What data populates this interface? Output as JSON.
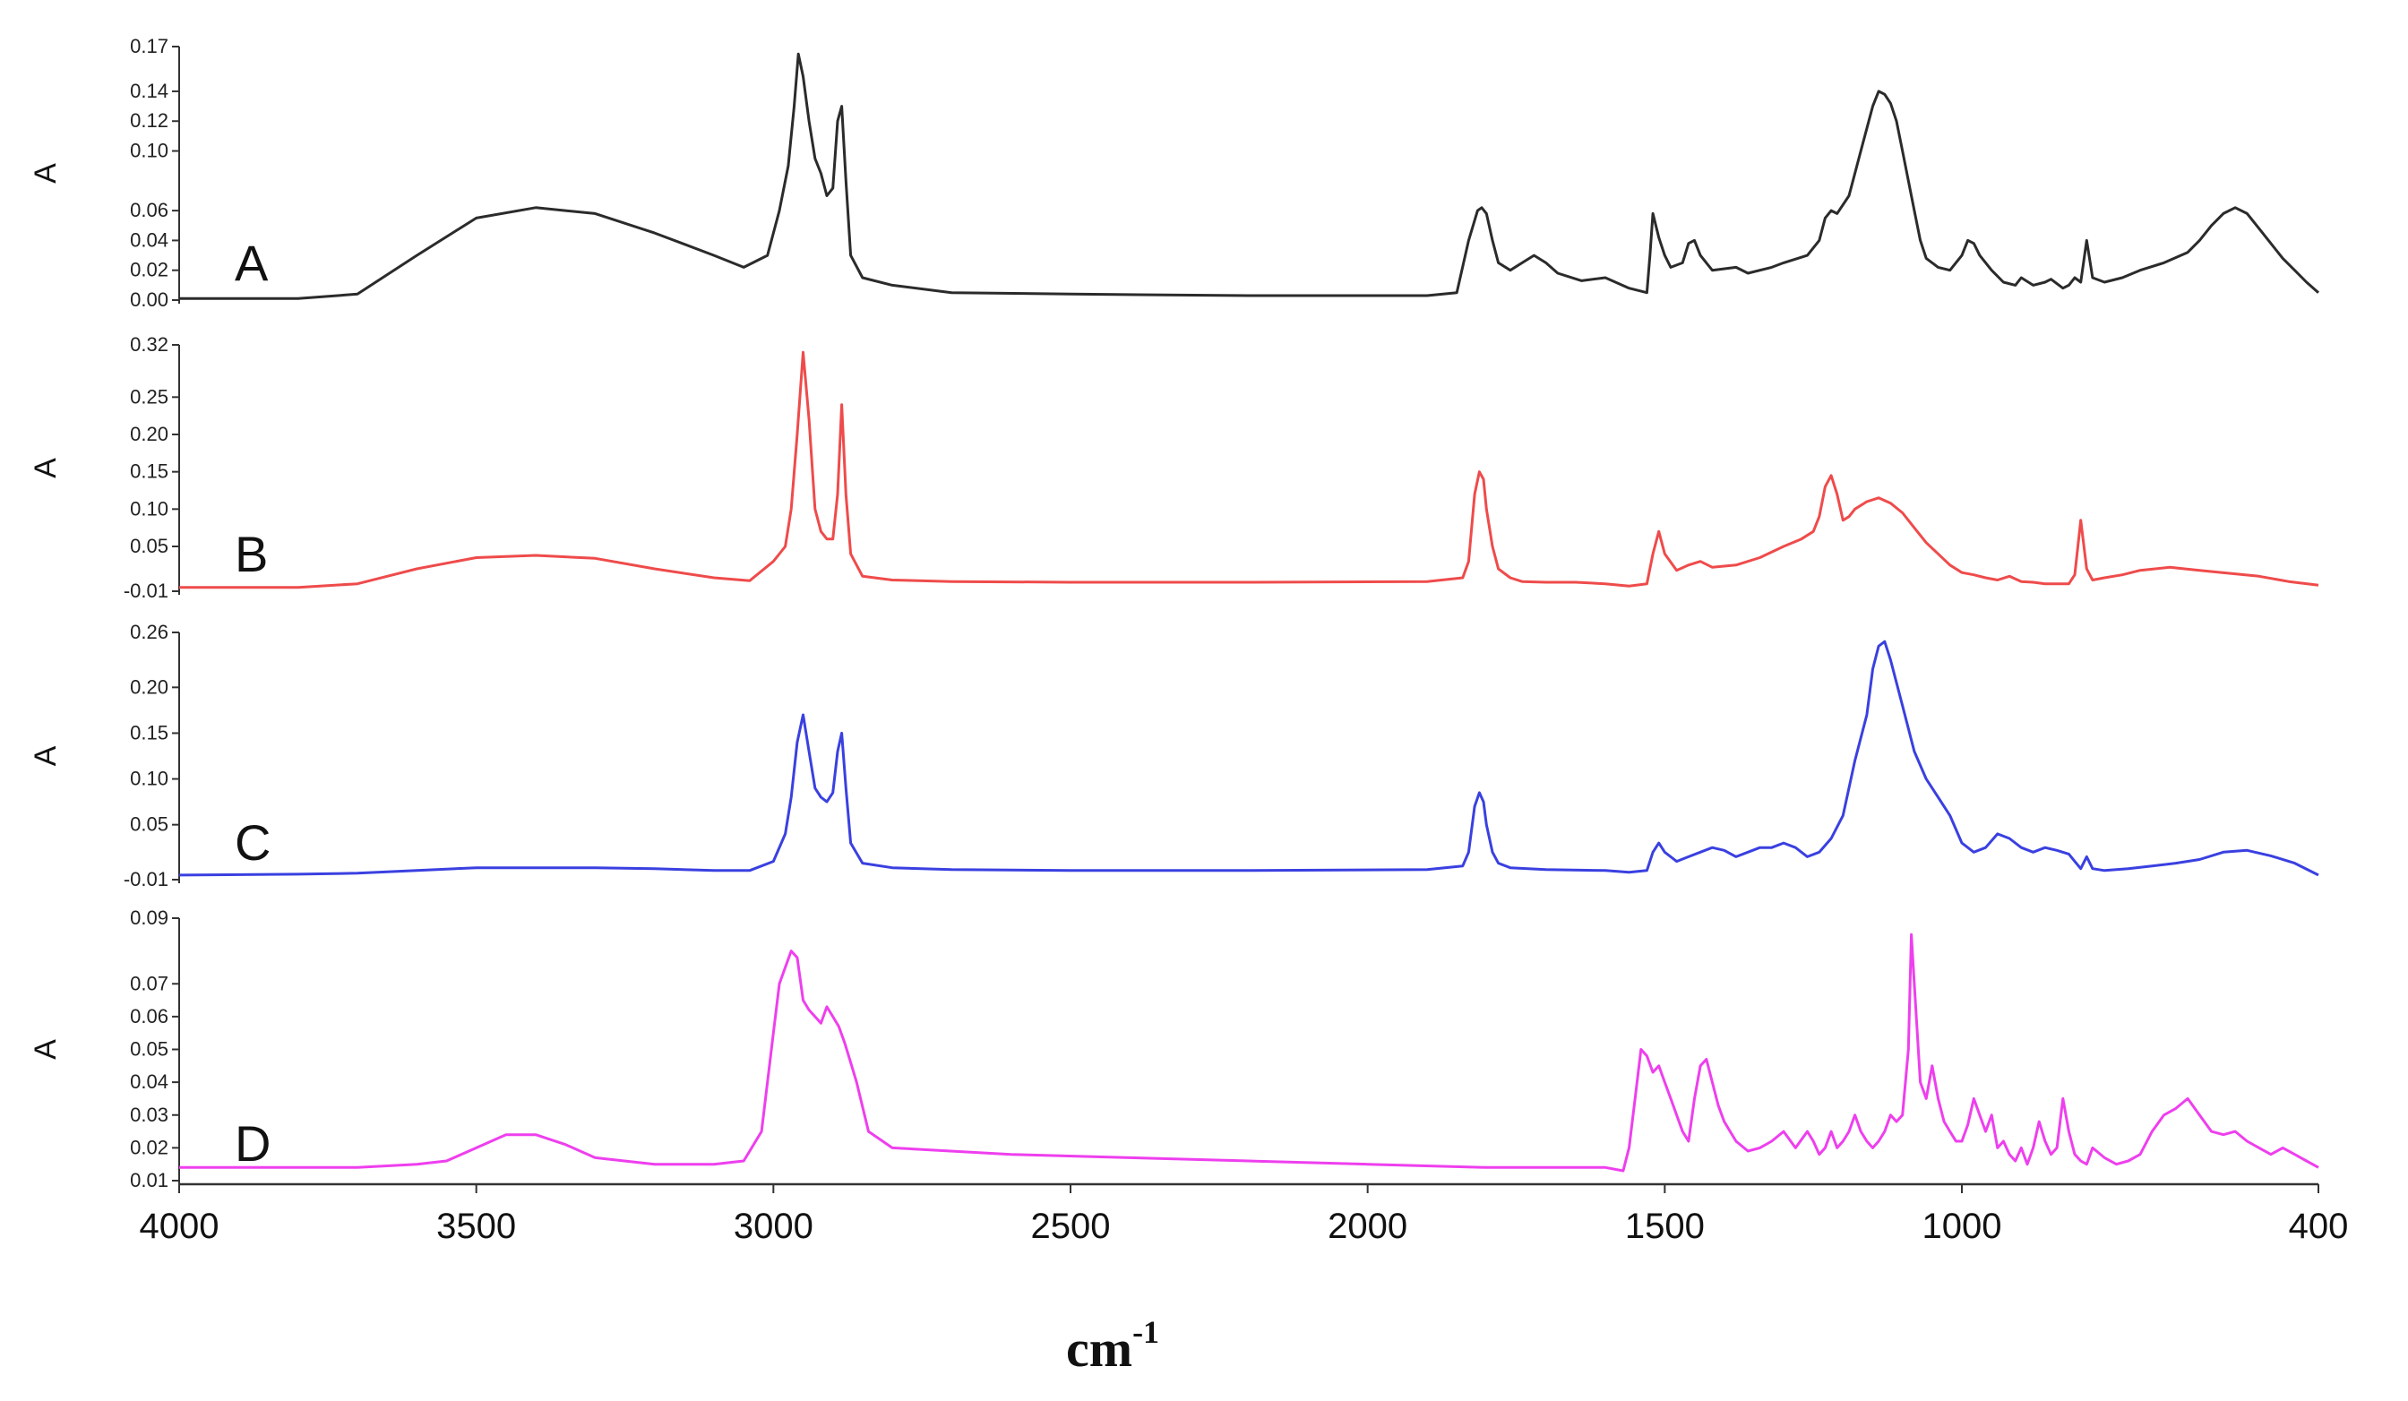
{
  "chart_data": {
    "type": "line",
    "xlabel": "cm",
    "xlabel_sup": "-1",
    "xlim": [
      4000,
      400
    ],
    "xticks": [
      "4000",
      "3500",
      "3000",
      "2500",
      "2000",
      "1500",
      "1000",
      "400"
    ],
    "xtick_values": [
      4000,
      3500,
      3000,
      2500,
      2000,
      1500,
      1000,
      400
    ],
    "panels": [
      {
        "label": "A",
        "ylabel": "A",
        "color": "#2b2b2b",
        "ylim": [
          0.0,
          0.17
        ],
        "yticks": [
          "0.17",
          "0.14",
          "0.12",
          "0.10",
          "0.06",
          "0.04",
          "0.02",
          "0.00"
        ],
        "ytick_values": [
          0.17,
          0.14,
          0.12,
          0.1,
          0.06,
          0.04,
          0.02,
          0.0
        ],
        "x": [
          4000,
          3800,
          3700,
          3600,
          3500,
          3400,
          3300,
          3200,
          3100,
          3050,
          3010,
          2990,
          2975,
          2965,
          2958,
          2950,
          2940,
          2930,
          2920,
          2910,
          2900,
          2892,
          2885,
          2878,
          2870,
          2850,
          2800,
          2700,
          2500,
          2200,
          1900,
          1850,
          1830,
          1815,
          1808,
          1800,
          1790,
          1780,
          1760,
          1740,
          1720,
          1700,
          1680,
          1640,
          1600,
          1560,
          1530,
          1525,
          1520,
          1510,
          1500,
          1490,
          1470,
          1460,
          1450,
          1440,
          1420,
          1380,
          1360,
          1320,
          1300,
          1260,
          1240,
          1230,
          1220,
          1210,
          1190,
          1170,
          1150,
          1140,
          1130,
          1120,
          1110,
          1100,
          1090,
          1080,
          1070,
          1060,
          1040,
          1020,
          1000,
          990,
          980,
          970,
          950,
          930,
          910,
          900,
          880,
          860,
          850,
          830,
          820,
          810,
          800,
          790,
          780,
          760,
          730,
          700,
          660,
          620,
          600,
          580,
          560,
          540,
          520,
          500,
          480,
          460,
          440,
          420,
          400
        ],
        "values": [
          0.001,
          0.001,
          0.004,
          0.03,
          0.055,
          0.062,
          0.058,
          0.045,
          0.03,
          0.022,
          0.03,
          0.06,
          0.09,
          0.13,
          0.165,
          0.15,
          0.12,
          0.095,
          0.085,
          0.07,
          0.075,
          0.12,
          0.13,
          0.08,
          0.03,
          0.015,
          0.01,
          0.005,
          0.004,
          0.003,
          0.003,
          0.005,
          0.04,
          0.06,
          0.062,
          0.058,
          0.04,
          0.025,
          0.02,
          0.025,
          0.03,
          0.025,
          0.018,
          0.013,
          0.015,
          0.008,
          0.005,
          0.03,
          0.058,
          0.042,
          0.03,
          0.022,
          0.025,
          0.038,
          0.04,
          0.03,
          0.02,
          0.022,
          0.018,
          0.022,
          0.025,
          0.03,
          0.04,
          0.055,
          0.06,
          0.058,
          0.07,
          0.1,
          0.13,
          0.14,
          0.138,
          0.132,
          0.12,
          0.1,
          0.08,
          0.06,
          0.04,
          0.028,
          0.022,
          0.02,
          0.03,
          0.04,
          0.038,
          0.03,
          0.02,
          0.012,
          0.01,
          0.015,
          0.01,
          0.012,
          0.014,
          0.008,
          0.01,
          0.015,
          0.012,
          0.04,
          0.015,
          0.012,
          0.015,
          0.02,
          0.025,
          0.032,
          0.04,
          0.05,
          0.058,
          0.062,
          0.058,
          0.048,
          0.038,
          0.028,
          0.02,
          0.012,
          0.005
        ]
      },
      {
        "label": "B",
        "ylabel": "A",
        "color": "#ef4b4b",
        "ylim": [
          -0.01,
          0.32
        ],
        "yticks": [
          "0.32",
          "0.25",
          "0.20",
          "0.15",
          "0.10",
          "0.05",
          "-0.01"
        ],
        "ytick_values": [
          0.32,
          0.25,
          0.2,
          0.15,
          0.1,
          0.05,
          -0.01
        ],
        "x": [
          4000,
          3800,
          3700,
          3600,
          3500,
          3400,
          3300,
          3200,
          3100,
          3040,
          3000,
          2980,
          2970,
          2960,
          2950,
          2940,
          2930,
          2920,
          2910,
          2900,
          2892,
          2885,
          2878,
          2870,
          2850,
          2800,
          2700,
          2500,
          2200,
          1900,
          1840,
          1830,
          1820,
          1812,
          1805,
          1800,
          1790,
          1780,
          1760,
          1740,
          1700,
          1650,
          1600,
          1560,
          1530,
          1520,
          1510,
          1500,
          1480,
          1460,
          1440,
          1420,
          1380,
          1340,
          1300,
          1270,
          1250,
          1240,
          1230,
          1220,
          1210,
          1200,
          1190,
          1180,
          1160,
          1140,
          1120,
          1100,
          1080,
          1060,
          1040,
          1020,
          1000,
          980,
          960,
          940,
          920,
          900,
          880,
          860,
          840,
          820,
          810,
          800,
          790,
          780,
          760,
          730,
          700,
          650,
          600,
          550,
          500,
          450,
          400
        ],
        "values": [
          -0.005,
          -0.005,
          0.0,
          0.02,
          0.035,
          0.038,
          0.034,
          0.02,
          0.008,
          0.004,
          0.03,
          0.05,
          0.1,
          0.2,
          0.31,
          0.22,
          0.1,
          0.07,
          0.06,
          0.06,
          0.12,
          0.24,
          0.12,
          0.04,
          0.01,
          0.005,
          0.003,
          0.002,
          0.002,
          0.003,
          0.008,
          0.03,
          0.12,
          0.15,
          0.14,
          0.1,
          0.05,
          0.02,
          0.008,
          0.003,
          0.002,
          0.002,
          0.0,
          -0.003,
          0.0,
          0.04,
          0.07,
          0.04,
          0.018,
          0.025,
          0.03,
          0.022,
          0.025,
          0.035,
          0.05,
          0.06,
          0.07,
          0.09,
          0.13,
          0.145,
          0.12,
          0.085,
          0.09,
          0.1,
          0.11,
          0.115,
          0.108,
          0.095,
          0.075,
          0.055,
          0.04,
          0.025,
          0.015,
          0.012,
          0.008,
          0.005,
          0.01,
          0.003,
          0.002,
          0.0,
          0.0,
          0.0,
          0.012,
          0.085,
          0.02,
          0.005,
          0.008,
          0.012,
          0.018,
          0.022,
          0.018,
          0.014,
          0.01,
          0.003,
          -0.002
        ]
      },
      {
        "label": "C",
        "ylabel": "A",
        "color": "#3a40e0",
        "ylim": [
          -0.01,
          0.26
        ],
        "yticks": [
          "0.26",
          "0.20",
          "0.15",
          "0.10",
          "0.05",
          "-0.01"
        ],
        "ytick_values": [
          0.26,
          0.2,
          0.15,
          0.1,
          0.05,
          -0.01
        ],
        "x": [
          4000,
          3800,
          3700,
          3600,
          3500,
          3400,
          3300,
          3200,
          3100,
          3040,
          3000,
          2980,
          2970,
          2960,
          2950,
          2940,
          2930,
          2920,
          2910,
          2900,
          2892,
          2885,
          2878,
          2870,
          2850,
          2800,
          2700,
          2500,
          2200,
          1900,
          1840,
          1830,
          1820,
          1812,
          1805,
          1800,
          1790,
          1780,
          1760,
          1700,
          1600,
          1560,
          1530,
          1520,
          1510,
          1500,
          1480,
          1460,
          1440,
          1420,
          1400,
          1380,
          1360,
          1340,
          1320,
          1300,
          1280,
          1260,
          1240,
          1220,
          1200,
          1180,
          1160,
          1150,
          1140,
          1130,
          1120,
          1100,
          1080,
          1060,
          1040,
          1020,
          1000,
          980,
          960,
          940,
          920,
          900,
          880,
          860,
          840,
          820,
          810,
          800,
          790,
          780,
          760,
          720,
          680,
          640,
          600,
          560,
          520,
          480,
          440,
          400
        ],
        "values": [
          -0.005,
          -0.004,
          -0.003,
          0.0,
          0.003,
          0.003,
          0.003,
          0.002,
          0.0,
          0.0,
          0.01,
          0.04,
          0.08,
          0.14,
          0.17,
          0.13,
          0.09,
          0.08,
          0.075,
          0.085,
          0.13,
          0.15,
          0.09,
          0.03,
          0.008,
          0.003,
          0.001,
          0.0,
          0.0,
          0.001,
          0.005,
          0.02,
          0.07,
          0.085,
          0.075,
          0.05,
          0.02,
          0.008,
          0.003,
          0.001,
          0.0,
          -0.002,
          0.0,
          0.02,
          0.03,
          0.02,
          0.01,
          0.015,
          0.02,
          0.025,
          0.022,
          0.015,
          0.02,
          0.025,
          0.025,
          0.03,
          0.025,
          0.015,
          0.02,
          0.035,
          0.06,
          0.12,
          0.17,
          0.22,
          0.245,
          0.25,
          0.23,
          0.18,
          0.13,
          0.1,
          0.08,
          0.06,
          0.03,
          0.02,
          0.025,
          0.04,
          0.035,
          0.025,
          0.02,
          0.025,
          0.022,
          0.018,
          0.01,
          0.002,
          0.015,
          0.002,
          0.0,
          0.002,
          0.005,
          0.008,
          0.012,
          0.02,
          0.022,
          0.016,
          0.008,
          -0.005
        ]
      },
      {
        "label": "D",
        "ylabel": "A",
        "color": "#ee3fee",
        "ylim": [
          0.01,
          0.09
        ],
        "yticks": [
          "0.09",
          "0.07",
          "0.06",
          "0.05",
          "0.04",
          "0.03",
          "0.02",
          "0.01"
        ],
        "ytick_values": [
          0.09,
          0.07,
          0.06,
          0.05,
          0.04,
          0.03,
          0.02,
          0.01
        ],
        "x": [
          4000,
          3800,
          3700,
          3600,
          3550,
          3500,
          3450,
          3400,
          3350,
          3300,
          3200,
          3100,
          3050,
          3020,
          3000,
          2990,
          2980,
          2970,
          2960,
          2950,
          2940,
          2930,
          2920,
          2910,
          2900,
          2890,
          2880,
          2870,
          2860,
          2840,
          2800,
          2600,
          2400,
          2200,
          2000,
          1800,
          1600,
          1570,
          1560,
          1550,
          1540,
          1530,
          1520,
          1510,
          1500,
          1490,
          1480,
          1470,
          1460,
          1450,
          1440,
          1430,
          1420,
          1410,
          1400,
          1380,
          1360,
          1340,
          1320,
          1300,
          1280,
          1260,
          1250,
          1240,
          1230,
          1220,
          1210,
          1200,
          1190,
          1180,
          1170,
          1160,
          1150,
          1140,
          1130,
          1120,
          1110,
          1100,
          1090,
          1085,
          1080,
          1070,
          1060,
          1050,
          1040,
          1030,
          1020,
          1010,
          1000,
          990,
          980,
          970,
          960,
          950,
          940,
          930,
          920,
          910,
          900,
          890,
          880,
          870,
          860,
          850,
          840,
          830,
          820,
          810,
          800,
          790,
          780,
          760,
          740,
          720,
          700,
          680,
          660,
          640,
          620,
          600,
          580,
          560,
          540,
          520,
          500,
          480,
          460,
          440,
          420,
          400
        ],
        "values": [
          0.014,
          0.014,
          0.014,
          0.015,
          0.016,
          0.02,
          0.024,
          0.024,
          0.021,
          0.017,
          0.015,
          0.015,
          0.016,
          0.025,
          0.055,
          0.07,
          0.075,
          0.08,
          0.078,
          0.065,
          0.062,
          0.06,
          0.058,
          0.063,
          0.06,
          0.057,
          0.052,
          0.046,
          0.04,
          0.025,
          0.02,
          0.018,
          0.017,
          0.016,
          0.015,
          0.014,
          0.014,
          0.013,
          0.02,
          0.035,
          0.05,
          0.048,
          0.043,
          0.045,
          0.04,
          0.035,
          0.03,
          0.025,
          0.022,
          0.035,
          0.045,
          0.047,
          0.04,
          0.033,
          0.028,
          0.022,
          0.019,
          0.02,
          0.022,
          0.025,
          0.02,
          0.025,
          0.022,
          0.018,
          0.02,
          0.025,
          0.02,
          0.022,
          0.025,
          0.03,
          0.025,
          0.022,
          0.02,
          0.022,
          0.025,
          0.03,
          0.028,
          0.03,
          0.05,
          0.085,
          0.07,
          0.04,
          0.035,
          0.045,
          0.035,
          0.028,
          0.025,
          0.022,
          0.022,
          0.027,
          0.035,
          0.03,
          0.025,
          0.03,
          0.02,
          0.022,
          0.018,
          0.016,
          0.02,
          0.015,
          0.02,
          0.028,
          0.022,
          0.018,
          0.02,
          0.035,
          0.025,
          0.018,
          0.016,
          0.015,
          0.02,
          0.017,
          0.015,
          0.016,
          0.018,
          0.025,
          0.03,
          0.032,
          0.035,
          0.03,
          0.025,
          0.024,
          0.025,
          0.022,
          0.02,
          0.018,
          0.02,
          0.018,
          0.016,
          0.014
        ]
      }
    ]
  }
}
